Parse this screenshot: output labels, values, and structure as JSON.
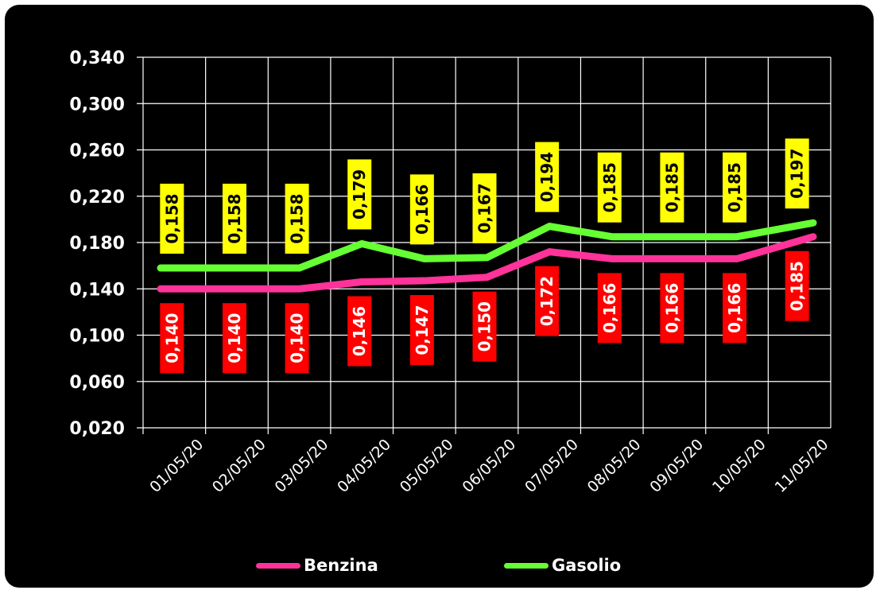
{
  "chart_data": {
    "type": "line",
    "categories": [
      "01/05/20",
      "02/05/20",
      "03/05/20",
      "04/05/20",
      "05/05/20",
      "06/05/20",
      "07/05/20",
      "08/05/20",
      "09/05/20",
      "10/05/20",
      "11/05/20"
    ],
    "series": [
      {
        "name": "Benzina",
        "color": "#ff3399",
        "values": [
          0.14,
          0.14,
          0.14,
          0.146,
          0.147,
          0.15,
          0.172,
          0.166,
          0.166,
          0.166,
          0.185
        ],
        "labels": [
          "0,140",
          "0,140",
          "0,140",
          "0,146",
          "0,147",
          "0,150",
          "0,172",
          "0,166",
          "0,166",
          "0,166",
          "0,185"
        ],
        "label_bg": "#ff0000",
        "label_color": "#ffffff"
      },
      {
        "name": "Gasolio",
        "color": "#66ff33",
        "values": [
          0.158,
          0.158,
          0.158,
          0.179,
          0.166,
          0.167,
          0.194,
          0.185,
          0.185,
          0.185,
          0.197
        ],
        "labels": [
          "0,158",
          "0,158",
          "0,158",
          "0,179",
          "0,166",
          "0,167",
          "0,194",
          "0,185",
          "0,185",
          "0,185",
          "0,197"
        ],
        "label_bg": "#ffff00",
        "label_color": "#000000"
      }
    ],
    "yticks": [
      0.02,
      0.06,
      0.1,
      0.14,
      0.18,
      0.22,
      0.26,
      0.3,
      0.34
    ],
    "ytick_labels": [
      "0,020",
      "0,060",
      "0,100",
      "0,140",
      "0,180",
      "0,220",
      "0,260",
      "0,300",
      "0,340"
    ],
    "ylim": [
      0.02,
      0.34
    ],
    "grid": true,
    "legend_position": "bottom",
    "background": "#000000",
    "grid_color": "#ffffff"
  },
  "legend": {
    "benzina_label": "Benzina",
    "gasolio_label": "Gasolio"
  }
}
